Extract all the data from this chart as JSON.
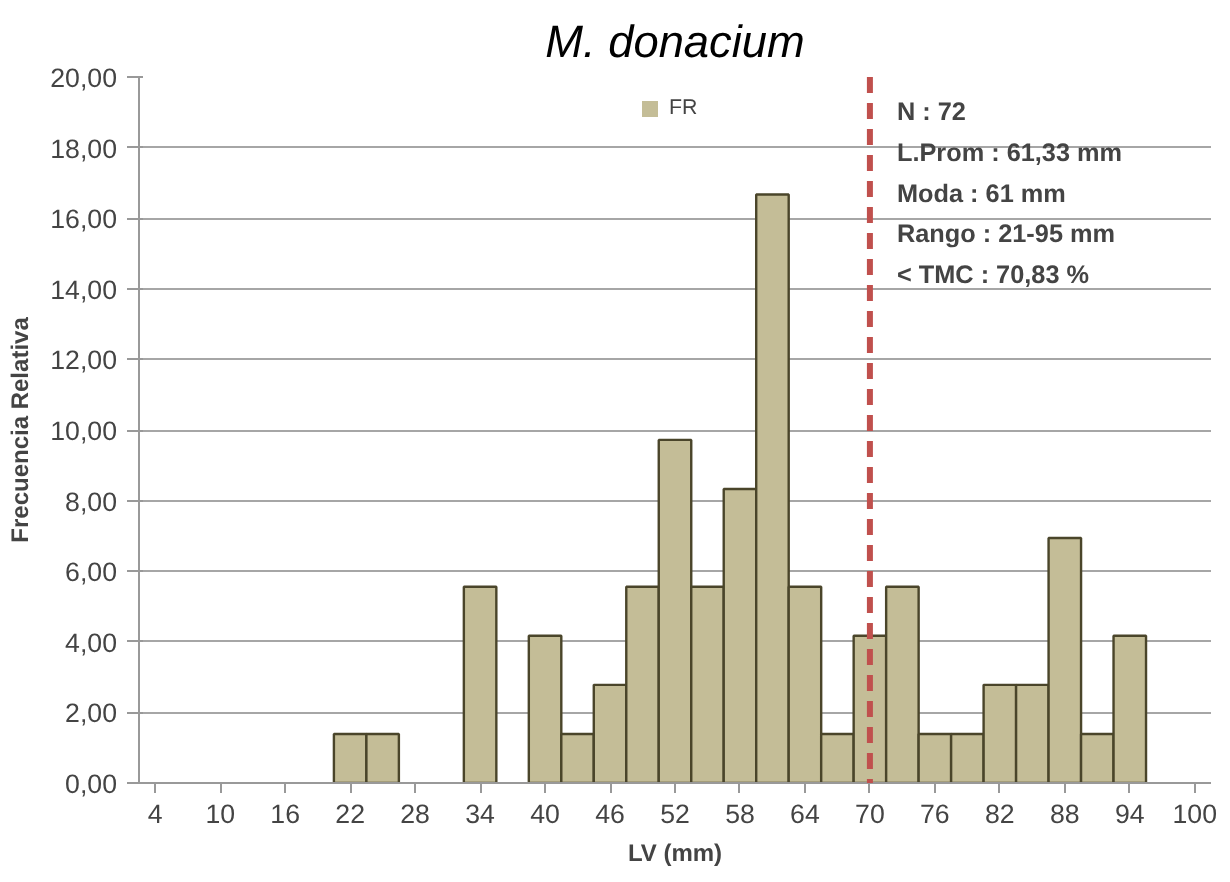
{
  "chart_data": {
    "type": "bar",
    "title": "M. donacium",
    "xlabel": "LV (mm)",
    "ylabel": "Frecuencia Relativa",
    "x": [
      4,
      7,
      10,
      13,
      16,
      19,
      22,
      25,
      28,
      31,
      34,
      37,
      40,
      43,
      46,
      49,
      52,
      55,
      58,
      61,
      64,
      67,
      70,
      73,
      76,
      79,
      82,
      85,
      88,
      91,
      94,
      97,
      100
    ],
    "series": [
      {
        "name": "FR",
        "color": "#c4bd97",
        "values": [
          0,
          0,
          0,
          0,
          0,
          0,
          1.39,
          1.39,
          0,
          0,
          5.56,
          0,
          4.17,
          1.39,
          2.78,
          5.56,
          9.72,
          5.56,
          8.33,
          16.67,
          5.56,
          1.39,
          4.17,
          5.56,
          1.39,
          1.39,
          2.78,
          2.78,
          6.94,
          1.39,
          4.17,
          0,
          0
        ]
      }
    ],
    "xlim": [
      2.5,
      101.5
    ],
    "xticks": [
      4,
      10,
      16,
      22,
      28,
      34,
      40,
      46,
      52,
      58,
      64,
      70,
      76,
      82,
      88,
      94,
      100
    ],
    "ylim": [
      0,
      20
    ],
    "yticks": [
      {
        "value": 0,
        "label": "0,00"
      },
      {
        "value": 2,
        "label": "2,00"
      },
      {
        "value": 4,
        "label": "4,00"
      },
      {
        "value": 6,
        "label": "6,00"
      },
      {
        "value": 8,
        "label": "8,00"
      },
      {
        "value": 10,
        "label": "10,00"
      },
      {
        "value": 12,
        "label": "12,00"
      },
      {
        "value": 14,
        "label": "14,00"
      },
      {
        "value": 16,
        "label": "16,00"
      },
      {
        "value": 18,
        "label": "18,00"
      },
      {
        "value": 20,
        "label": "20,00"
      }
    ],
    "ref_lines": [
      {
        "axis": "x",
        "value": 70,
        "color": "#c0504d",
        "line_style": "dashed"
      }
    ],
    "annotations": [
      "N         : 72",
      "L.Prom : 61,33 mm",
      "Moda    : 61 mm",
      "Rango  : 21-95 mm",
      "< TMC  : 70,83 %"
    ],
    "grid": "y",
    "legend": "top"
  }
}
